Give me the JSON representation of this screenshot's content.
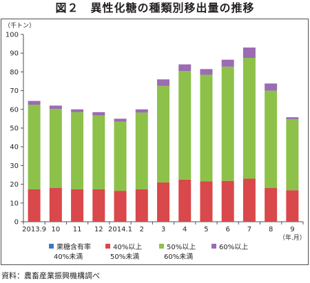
{
  "title": "図２　異性化糖の種類別移出量の推移",
  "source": "資料：農畜産業振興機構調べ",
  "chart_data": {
    "type": "bar",
    "stacked": true,
    "ylabel": "（千トン）",
    "x_unit_label": "（年.月）",
    "ylim": [
      0,
      100
    ],
    "yticks": [
      0,
      10,
      20,
      30,
      40,
      50,
      60,
      70,
      80,
      90,
      100
    ],
    "grid": false,
    "legend_position": "bottom",
    "categories": [
      "2013.9",
      "10",
      "11",
      "12",
      "2014.1",
      "2",
      "3",
      "4",
      "5",
      "6",
      "7",
      "8",
      "9"
    ],
    "series": [
      {
        "name": "果糖含有率\n40%未満",
        "color": "#3a7bbf",
        "values": [
          0,
          0,
          0,
          0,
          0,
          0,
          0,
          0,
          0,
          0,
          0,
          0,
          0
        ]
      },
      {
        "name": "40%以上\n50%未満",
        "color": "#d9484a",
        "values": [
          17.3,
          18.0,
          17.3,
          17.3,
          16.5,
          17.3,
          21.0,
          22.5,
          21.5,
          21.8,
          23.0,
          18.0,
          16.8
        ]
      },
      {
        "name": "50%以上\n60%未満",
        "color": "#8dc14a",
        "values": [
          45.2,
          42.3,
          41.2,
          39.5,
          37.0,
          41.0,
          51.5,
          58.0,
          57.0,
          61.0,
          64.5,
          52.0,
          38.0
        ]
      },
      {
        "name": "60%以上",
        "color": "#9b6bb3",
        "values": [
          2.0,
          1.7,
          1.5,
          1.7,
          1.5,
          1.7,
          3.5,
          3.5,
          3.0,
          3.7,
          5.5,
          3.8,
          1.0
        ]
      }
    ]
  }
}
